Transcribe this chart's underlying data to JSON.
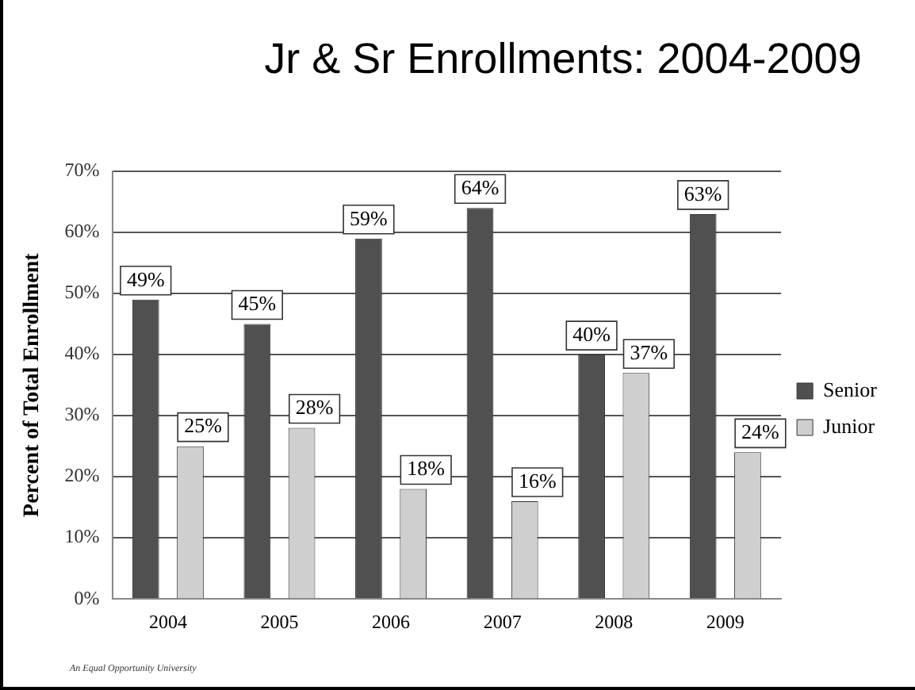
{
  "chart_data": {
    "type": "bar",
    "title": "Jr & Sr Enrollments: 2004-2009",
    "ylabel": "Percent of Total Enrollment",
    "categories": [
      "2004",
      "2005",
      "2006",
      "2007",
      "2008",
      "2009"
    ],
    "series": [
      {
        "name": "Senior",
        "color": "#505050",
        "values": [
          49,
          45,
          59,
          64,
          40,
          63
        ],
        "value_labels": [
          "49%",
          "45%",
          "59%",
          "64%",
          "40%",
          "63%"
        ]
      },
      {
        "name": "Junior",
        "color": "#cfcfcf",
        "values": [
          25,
          28,
          18,
          16,
          37,
          24
        ],
        "value_labels": [
          "25%",
          "28%",
          "18%",
          "16%",
          "37%",
          "24%"
        ]
      }
    ],
    "ylim": [
      0,
      70
    ],
    "yticks": [
      {
        "value": 0,
        "label": "0%"
      },
      {
        "value": 10,
        "label": "10%"
      },
      {
        "value": 20,
        "label": "20%"
      },
      {
        "value": 30,
        "label": "30%"
      },
      {
        "value": 40,
        "label": "40%"
      },
      {
        "value": 50,
        "label": "50%"
      },
      {
        "value": 60,
        "label": "60%"
      },
      {
        "value": 70,
        "label": "70%"
      }
    ],
    "grid": "y",
    "legend": "right",
    "annotations": [
      "An Equal Opportunity University"
    ]
  }
}
